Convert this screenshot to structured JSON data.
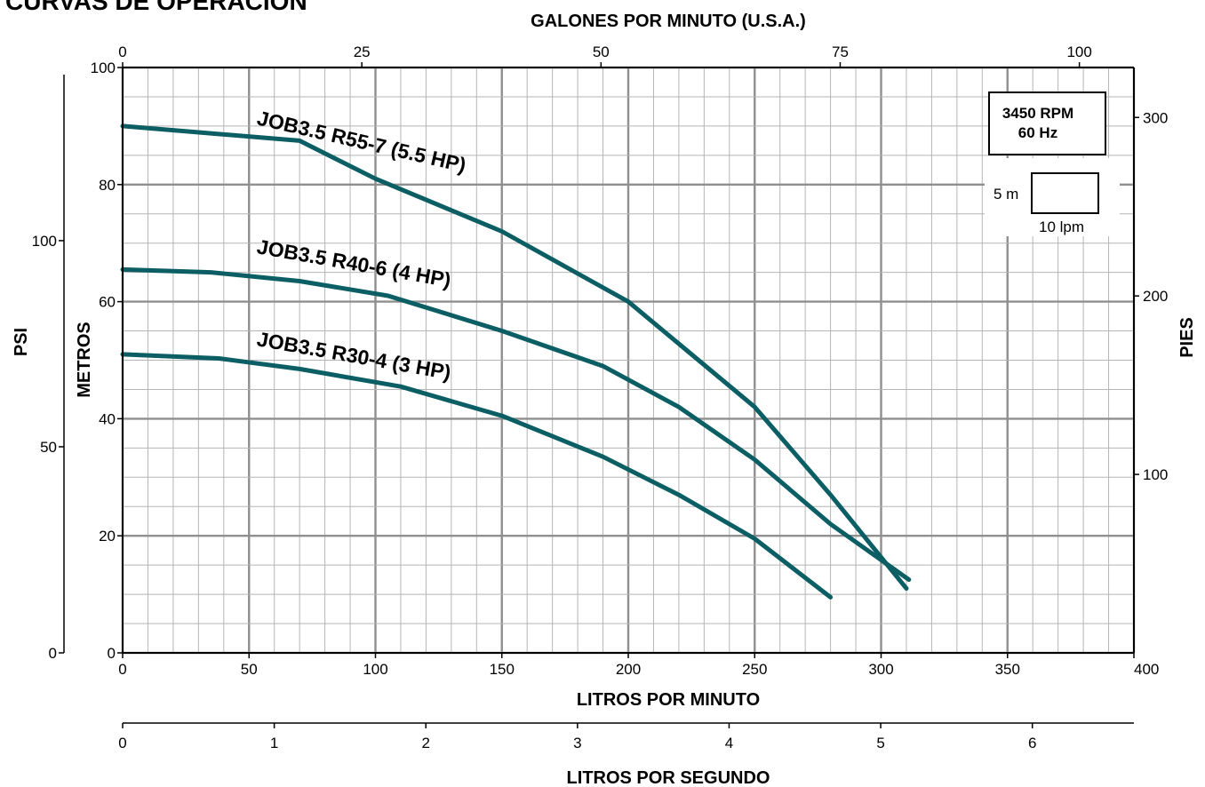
{
  "page_title": "CURVAS DE OPERACION",
  "chart_data": {
    "type": "line",
    "title": "CURVAS DE OPERACION",
    "top_axis": {
      "label": "GALONES POR MINUTO (U.S.A.)",
      "range": [
        0,
        105.7
      ],
      "ticks": [
        "0",
        "25",
        "50",
        "75",
        "100"
      ],
      "tick_values": [
        0,
        25,
        50,
        75,
        100
      ]
    },
    "bottom_axis": {
      "label": "LITROS POR MINUTO",
      "range": [
        0,
        400
      ],
      "ticks": [
        "0",
        "50",
        "100",
        "150",
        "200",
        "250",
        "300",
        "350",
        "400"
      ],
      "tick_values": [
        0,
        50,
        100,
        150,
        200,
        250,
        300,
        350,
        400
      ]
    },
    "secondary_bottom_axis": {
      "label": "LITROS POR SEGUNDO",
      "range": [
        0,
        6.67
      ],
      "ticks": [
        "0",
        "1",
        "2",
        "3",
        "4",
        "5",
        "6"
      ],
      "tick_values": [
        0,
        1,
        2,
        3,
        4,
        5,
        6
      ]
    },
    "left_axis": {
      "label": "METROS",
      "range": [
        0,
        100
      ],
      "ticks": [
        "0",
        "20",
        "40",
        "60",
        "80",
        "100"
      ],
      "tick_values": [
        0,
        20,
        40,
        60,
        80,
        100
      ]
    },
    "left_outer_axis": {
      "label": "PSI",
      "range": [
        0,
        142
      ],
      "ticks": [
        "0",
        "50",
        "100"
      ],
      "tick_values": [
        0,
        50,
        100
      ]
    },
    "right_axis": {
      "label": "PIES",
      "range": [
        0,
        328
      ],
      "ticks": [
        "100",
        "200",
        "300"
      ],
      "tick_values": [
        100,
        200,
        300
      ]
    },
    "grid": true,
    "legend_box": {
      "rpm": "3450 RPM",
      "hz": "60 Hz",
      "scale_v": "5 m",
      "scale_h": "10 lpm"
    },
    "series": [
      {
        "name": "JOB3.5 R55-7 (5.5 HP)",
        "color": "#0b5e63",
        "x": [
          0,
          70,
          100,
          150,
          200,
          250,
          280,
          310
        ],
        "y": [
          90,
          87.5,
          81,
          72,
          60,
          42,
          27,
          11
        ]
      },
      {
        "name": "JOB3.5 R40-6 (4 HP)",
        "color": "#0b5e63",
        "x": [
          0,
          35,
          70,
          105,
          150,
          190,
          220,
          250,
          280,
          311
        ],
        "y": [
          65.5,
          65,
          63.5,
          61,
          55,
          49,
          42,
          33,
          22,
          12.5
        ]
      },
      {
        "name": "JOB3.5 R30-4 (3 HP)",
        "color": "#0b5e63",
        "x": [
          0,
          38,
          70,
          110,
          150,
          190,
          220,
          250,
          280
        ],
        "y": [
          51,
          50.3,
          48.5,
          45.5,
          40.5,
          33.5,
          27,
          19.5,
          9.5
        ]
      }
    ]
  }
}
